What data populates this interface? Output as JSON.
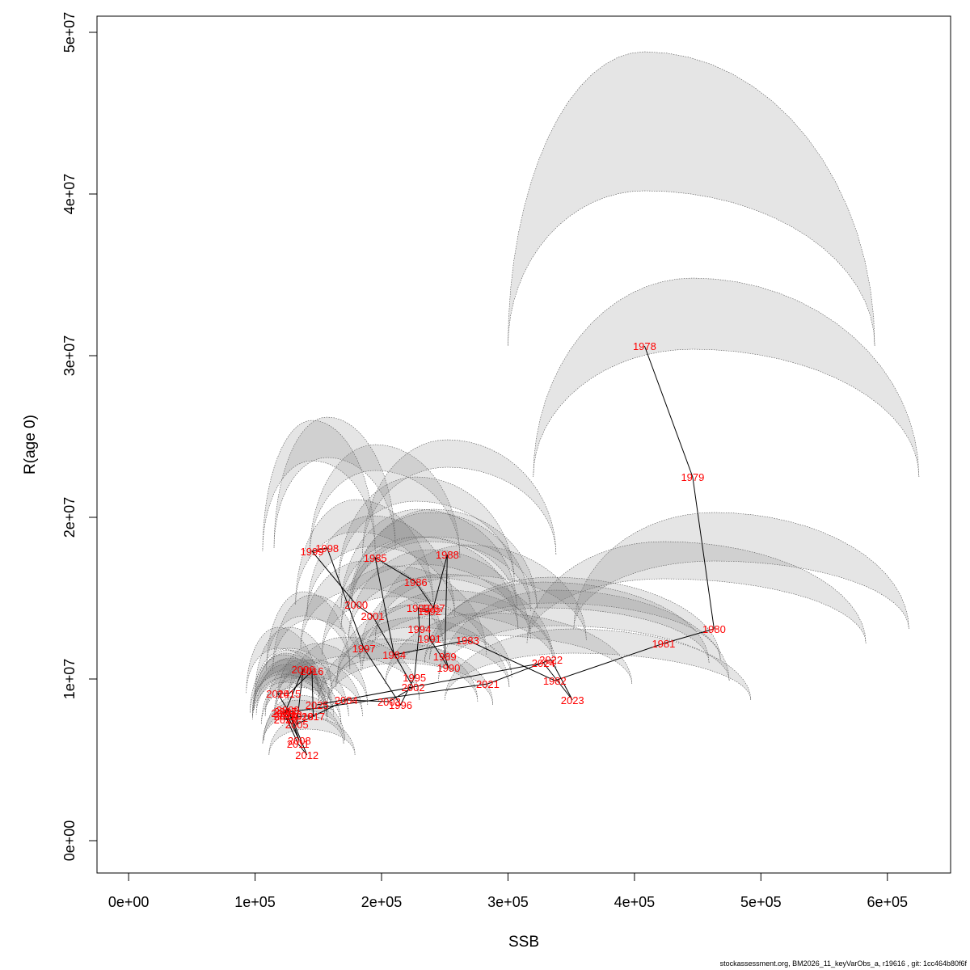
{
  "footer_text": "stockassessment.org, BM2026_11_keyVarObs_a, r19616 , git: 1cc464b80f6f",
  "colors": {
    "label": "#ff0000",
    "ellipse_fill": "#7f7f7f",
    "ellipse_stroke": "#555555",
    "path": "#000000"
  },
  "chart_data": {
    "type": "scatter",
    "xlabel": "SSB",
    "ylabel": "R(age 0)",
    "xlim": [
      -25000,
      650000
    ],
    "ylim": [
      -2000000,
      51000000
    ],
    "grid": false,
    "x_ticks": [
      0,
      100000,
      200000,
      300000,
      400000,
      500000,
      600000
    ],
    "x_tick_labels": [
      "0e+00",
      "1e+05",
      "2e+05",
      "3e+05",
      "4e+05",
      "5e+05",
      "6e+05"
    ],
    "y_ticks": [
      0,
      10000000,
      20000000,
      30000000,
      40000000,
      50000000
    ],
    "y_tick_labels": [
      "0e+00",
      "1e+07",
      "2e+07",
      "3e+07",
      "4e+07",
      "5e+07"
    ],
    "points": [
      {
        "year": "1978",
        "ssb": 408000,
        "r": 30600000,
        "ci_ssb": [
          300000,
          590000
        ],
        "ci_r": [
          21000000,
          48800000
        ]
      },
      {
        "year": "1979",
        "ssb": 446000,
        "r": 22500000,
        "ci_ssb": [
          320000,
          625000
        ],
        "ci_r": [
          14600000,
          34800000
        ]
      },
      {
        "year": "1980",
        "ssb": 463000,
        "r": 13100000,
        "ci_ssb": [
          352000,
          617000
        ],
        "ci_r": [
          8900000,
          20300000
        ]
      },
      {
        "year": "1981",
        "ssb": 423000,
        "r": 12200000,
        "ci_ssb": [
          315000,
          583000
        ],
        "ci_r": [
          8200000,
          18500000
        ]
      },
      {
        "year": "1982",
        "ssb": 337000,
        "r": 9900000,
        "ci_ssb": [
          245000,
          475000
        ],
        "ci_r": [
          6500000,
          15500000
        ]
      },
      {
        "year": "1983",
        "ssb": 268000,
        "r": 12400000,
        "ci_ssb": [
          195000,
          362000
        ],
        "ci_r": [
          8400000,
          18300000
        ]
      },
      {
        "year": "1984",
        "ssb": 210000,
        "r": 11500000,
        "ci_ssb": [
          153000,
          283000
        ],
        "ci_r": [
          7900000,
          17000000
        ]
      },
      {
        "year": "1985",
        "ssb": 195000,
        "r": 17500000,
        "ci_ssb": [
          143000,
          262000
        ],
        "ci_r": [
          12100000,
          24500000
        ]
      },
      {
        "year": "1986",
        "ssb": 227000,
        "r": 16000000,
        "ci_ssb": [
          166000,
          305000
        ],
        "ci_r": [
          11000000,
          22500000
        ]
      },
      {
        "year": "1987",
        "ssb": 241000,
        "r": 14400000,
        "ci_ssb": [
          176000,
          323000
        ],
        "ci_r": [
          10000000,
          20500000
        ]
      },
      {
        "year": "1988",
        "ssb": 252000,
        "r": 17700000,
        "ci_ssb": [
          185000,
          338000
        ],
        "ci_r": [
          12300000,
          24800000
        ]
      },
      {
        "year": "1989",
        "ssb": 250000,
        "r": 11400000,
        "ci_ssb": [
          183000,
          335000
        ],
        "ci_r": [
          7900000,
          16500000
        ]
      },
      {
        "year": "1990",
        "ssb": 253000,
        "r": 10700000,
        "ci_ssb": [
          185000,
          338000
        ],
        "ci_r": [
          7400000,
          15500000
        ]
      },
      {
        "year": "1991",
        "ssb": 238000,
        "r": 12500000,
        "ci_ssb": [
          174000,
          318000
        ],
        "ci_r": [
          8700000,
          18000000
        ]
      },
      {
        "year": "1992",
        "ssb": 238000,
        "r": 14200000,
        "ci_ssb": [
          174000,
          318000
        ],
        "ci_r": [
          9900000,
          20300000
        ]
      },
      {
        "year": "1993",
        "ssb": 229000,
        "r": 14400000,
        "ci_ssb": [
          168000,
          307000
        ],
        "ci_r": [
          10000000,
          20500000
        ]
      },
      {
        "year": "1994",
        "ssb": 230000,
        "r": 13100000,
        "ci_ssb": [
          168000,
          308000
        ],
        "ci_r": [
          9100000,
          18800000
        ]
      },
      {
        "year": "1995",
        "ssb": 226000,
        "r": 10100000,
        "ci_ssb": [
          165000,
          303000
        ],
        "ci_r": [
          7000000,
          14600000
        ]
      },
      {
        "year": "1996",
        "ssb": 215000,
        "r": 8400000,
        "ci_ssb": [
          157000,
          288000
        ],
        "ci_r": [
          5800000,
          12200000
        ]
      },
      {
        "year": "1997",
        "ssb": 186000,
        "r": 11900000,
        "ci_ssb": [
          136000,
          249000
        ],
        "ci_r": [
          8200000,
          17300000
        ]
      },
      {
        "year": "1998",
        "ssb": 157000,
        "r": 18100000,
        "ci_ssb": [
          115000,
          211000
        ],
        "ci_r": [
          12500000,
          26200000
        ]
      },
      {
        "year": "1999",
        "ssb": 145000,
        "r": 17900000,
        "ci_ssb": [
          106000,
          195000
        ],
        "ci_r": [
          12300000,
          26000000
        ]
      },
      {
        "year": "2000",
        "ssb": 180000,
        "r": 14600000,
        "ci_ssb": [
          132000,
          241000
        ],
        "ci_r": [
          10100000,
          21100000
        ]
      },
      {
        "year": "2001",
        "ssb": 193000,
        "r": 13900000,
        "ci_ssb": [
          141000,
          258000
        ],
        "ci_r": [
          9600000,
          20100000
        ]
      },
      {
        "year": "2002",
        "ssb": 225000,
        "r": 9500000,
        "ci_ssb": [
          164000,
          301000
        ],
        "ci_r": [
          6600000,
          13800000
        ]
      },
      {
        "year": "2003",
        "ssb": 206000,
        "r": 8600000,
        "ci_ssb": [
          150000,
          276000
        ],
        "ci_r": [
          5900000,
          12500000
        ]
      },
      {
        "year": "2004",
        "ssb": 172000,
        "r": 8700000,
        "ci_ssb": [
          126000,
          230000
        ],
        "ci_r": [
          6000000,
          12600000
        ]
      },
      {
        "year": "2005",
        "ssb": 133000,
        "r": 7200000,
        "ci_ssb": [
          105000,
          168000
        ],
        "ci_r": [
          4900000,
          10500000
        ]
      },
      {
        "year": "2006",
        "ssb": 138000,
        "r": 10600000,
        "ci_ssb": [
          109000,
          175000
        ],
        "ci_r": [
          7300000,
          15400000
        ]
      },
      {
        "year": "2007",
        "ssb": 124000,
        "r": 8000000,
        "ci_ssb": [
          98000,
          157000
        ],
        "ci_r": [
          5500000,
          11600000
        ]
      },
      {
        "year": "2008",
        "ssb": 135000,
        "r": 6200000,
        "ci_ssb": [
          107000,
          171000
        ],
        "ci_r": [
          4300000,
          9000000
        ]
      },
      {
        "year": "2009",
        "ssb": 126000,
        "r": 8100000,
        "ci_ssb": [
          99000,
          160000
        ],
        "ci_r": [
          5600000,
          11800000
        ]
      },
      {
        "year": "2010",
        "ssb": 124000,
        "r": 7700000,
        "ci_ssb": [
          98000,
          157000
        ],
        "ci_r": [
          5300000,
          11200000
        ]
      },
      {
        "year": "2011",
        "ssb": 134000,
        "r": 6000000,
        "ci_ssb": [
          106000,
          170000
        ],
        "ci_r": [
          4200000,
          8700000
        ]
      },
      {
        "year": "2012",
        "ssb": 141000,
        "r": 5300000,
        "ci_ssb": [
          111000,
          179000
        ],
        "ci_r": [
          3700000,
          7700000
        ]
      },
      {
        "year": "2013",
        "ssb": 128000,
        "r": 7800000,
        "ci_ssb": [
          101000,
          162000
        ],
        "ci_r": [
          5400000,
          11300000
        ]
      },
      {
        "year": "2014",
        "ssb": 118000,
        "r": 9100000,
        "ci_ssb": [
          93000,
          150000
        ],
        "ci_r": [
          6300000,
          13200000
        ]
      },
      {
        "year": "2015",
        "ssb": 127000,
        "r": 9100000,
        "ci_ssb": [
          100000,
          161000
        ],
        "ci_r": [
          6300000,
          13200000
        ]
      },
      {
        "year": "2016",
        "ssb": 145000,
        "r": 10500000,
        "ci_ssb": [
          114000,
          184000
        ],
        "ci_r": [
          7300000,
          15200000
        ]
      },
      {
        "year": "2017",
        "ssb": 146000,
        "r": 7700000,
        "ci_ssb": [
          115000,
          185000
        ],
        "ci_r": [
          5300000,
          11200000
        ]
      },
      {
        "year": "2018",
        "ssb": 137000,
        "r": 7700000,
        "ci_ssb": [
          108000,
          174000
        ],
        "ci_r": [
          5300000,
          11200000
        ]
      },
      {
        "year": "2019",
        "ssb": 124000,
        "r": 7500000,
        "ci_ssb": [
          98000,
          157000
        ],
        "ci_r": [
          5200000,
          10900000
        ]
      },
      {
        "year": "2020",
        "ssb": 122000,
        "r": 7900000,
        "ci_ssb": [
          96000,
          155000
        ],
        "ci_r": [
          5500000,
          11500000
        ]
      },
      {
        "year": "2021",
        "ssb": 284000,
        "r": 9700000,
        "ci_ssb": [
          203000,
          398000
        ],
        "ci_r": [
          6700000,
          14100000
        ]
      },
      {
        "year": "2022",
        "ssb": 334000,
        "r": 11200000,
        "ci_ssb": [
          238000,
          468000
        ],
        "ci_r": [
          7700000,
          16300000
        ]
      },
      {
        "year": "2023",
        "ssb": 351000,
        "r": 8700000,
        "ci_ssb": [
          250000,
          492000
        ],
        "ci_r": [
          5800000,
          13100000
        ]
      },
      {
        "year": "2024",
        "ssb": 328000,
        "r": 11000000,
        "ci_ssb": [
          234000,
          459000
        ],
        "ci_r": [
          7600000,
          16000000
        ]
      },
      {
        "year": "2025",
        "ssb": 149000,
        "r": 8400000,
        "ci_ssb": [
          117000,
          189000
        ],
        "ci_r": [
          5800000,
          12200000
        ]
      }
    ]
  }
}
